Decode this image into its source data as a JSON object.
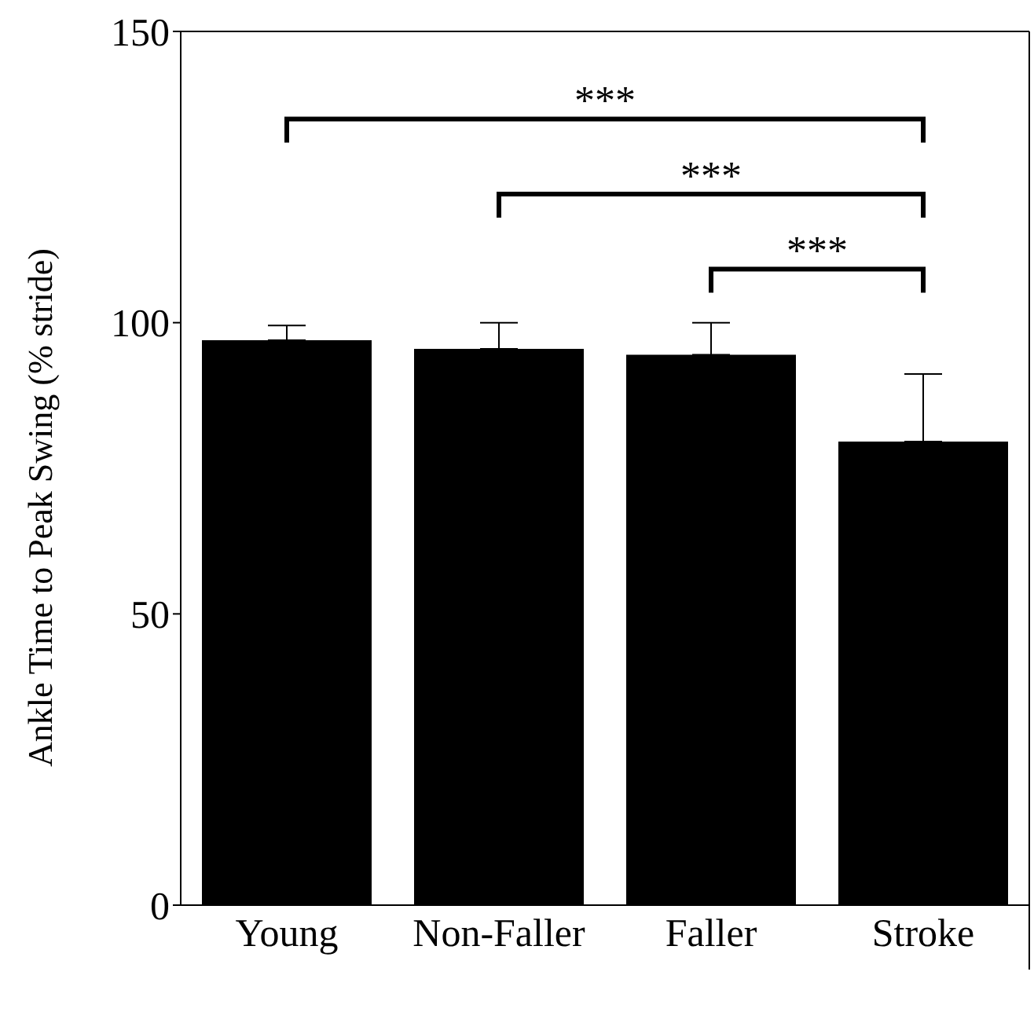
{
  "chart_data": {
    "type": "bar",
    "ylabel": "Ankle Time to Peak Swing (% stride)",
    "categories": [
      "Young",
      "Non-Faller",
      "Faller",
      "Stroke"
    ],
    "values": [
      97,
      95.5,
      94.5,
      79.6
    ],
    "errors": [
      [
        97,
        99.5
      ],
      [
        95.5,
        100
      ],
      [
        94.5,
        100
      ],
      [
        79.6,
        91.2
      ]
    ],
    "color": "#000000",
    "ylim": [
      0,
      150
    ],
    "yticks": [
      0,
      50,
      100,
      150
    ],
    "annotations": [
      "***",
      "***",
      "***"
    ]
  }
}
